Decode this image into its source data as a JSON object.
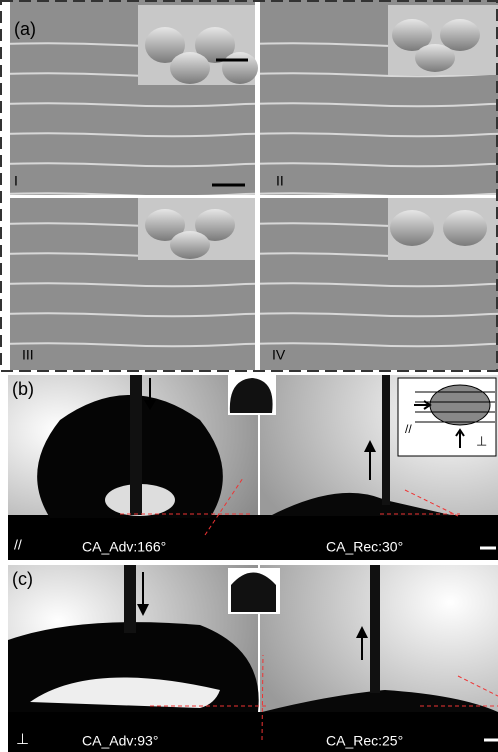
{
  "panel_a": {
    "label": "(a)",
    "quadrants": [
      "I",
      "II",
      "III",
      "IV"
    ]
  },
  "panel_b": {
    "label": "(b)",
    "direction": "//",
    "advancing": "CA_Adv:166°",
    "receding": "CA_Rec:30°",
    "inset_labels": [
      "//",
      "⊥"
    ]
  },
  "panel_c": {
    "label": "(c)",
    "direction": "⊥",
    "advancing": "CA_Adv:93°",
    "receding": "CA_Rec:25°"
  }
}
